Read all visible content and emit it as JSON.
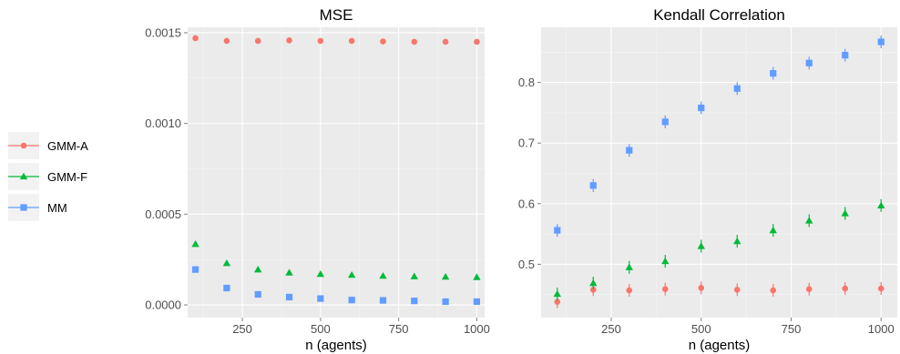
{
  "colors": {
    "GMM-A": "#F8766D",
    "GMM-F": "#00BA38",
    "MM": "#619CFF",
    "panel": "#EBEBEB",
    "grid": "#FFFFFF"
  },
  "legend": {
    "position": "left",
    "entries": [
      {
        "name": "GMM-A",
        "shape": "circle"
      },
      {
        "name": "GMM-F",
        "shape": "triangle"
      },
      {
        "name": "MM",
        "shape": "square"
      }
    ]
  },
  "chart_data": [
    {
      "type": "scatter",
      "title": "MSE",
      "xlabel": "n (agents)",
      "ylabel": "",
      "xlim": [
        75,
        1025
      ],
      "ylim": [
        -7e-05,
        0.00153
      ],
      "x_ticks": [
        250,
        500,
        750,
        1000
      ],
      "x_tick_labels": [
        "250",
        "500",
        "750",
        "1000"
      ],
      "y_ticks": [
        0.0,
        0.0005,
        0.001,
        0.0015
      ],
      "y_tick_labels": [
        "0.0000",
        "0.0005",
        "0.0010",
        "0.0015"
      ],
      "grid": true,
      "x": [
        100,
        200,
        300,
        400,
        500,
        600,
        700,
        800,
        900,
        1000
      ],
      "series": [
        {
          "name": "GMM-A",
          "values": [
            0.00147,
            0.001455,
            0.001455,
            0.001458,
            0.001455,
            0.001455,
            0.001452,
            0.00145,
            0.00145,
            0.00145
          ]
        },
        {
          "name": "GMM-F",
          "values": [
            0.000335,
            0.00023,
            0.000195,
            0.000178,
            0.00017,
            0.000165,
            0.00016,
            0.000157,
            0.000155,
            0.000153
          ]
        },
        {
          "name": "MM",
          "values": [
            0.000195,
            9.3e-05,
            5.8e-05,
            4.3e-05,
            3.5e-05,
            2.7e-05,
            2.5e-05,
            2.2e-05,
            1.8e-05,
            1.8e-05
          ]
        }
      ]
    },
    {
      "type": "scatter",
      "title": "Kendall Correlation",
      "xlabel": "n (agents)",
      "ylabel": "",
      "xlim": [
        55,
        1045
      ],
      "ylim": [
        0.412,
        0.891
      ],
      "x_ticks": [
        250,
        500,
        750,
        1000
      ],
      "x_tick_labels": [
        "250",
        "500",
        "750",
        "1000"
      ],
      "y_ticks": [
        0.5,
        0.6,
        0.7,
        0.8
      ],
      "y_tick_labels": [
        "0.5",
        "0.6",
        "0.7",
        "0.8"
      ],
      "grid": true,
      "x": [
        100,
        200,
        300,
        400,
        500,
        600,
        700,
        800,
        900,
        1000
      ],
      "series": [
        {
          "name": "GMM-A",
          "values": [
            0.438,
            0.458,
            0.457,
            0.459,
            0.461,
            0.458,
            0.457,
            0.459,
            0.46,
            0.46
          ]
        },
        {
          "name": "GMM-F",
          "values": [
            0.451,
            0.469,
            0.495,
            0.505,
            0.53,
            0.538,
            0.556,
            0.572,
            0.584,
            0.597
          ]
        },
        {
          "name": "MM",
          "values": [
            0.556,
            0.63,
            0.688,
            0.735,
            0.758,
            0.79,
            0.815,
            0.832,
            0.845,
            0.867
          ]
        }
      ]
    }
  ]
}
